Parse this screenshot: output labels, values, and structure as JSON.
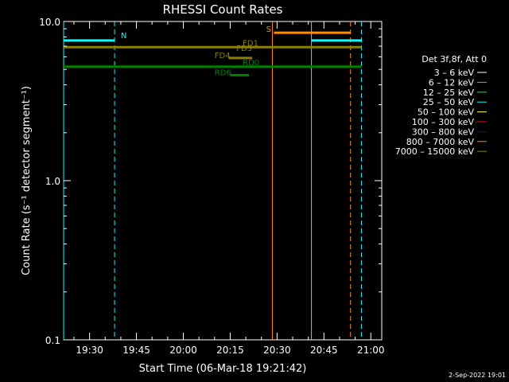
{
  "chart_data": {
    "type": "line",
    "title": "RHESSI Count Rates",
    "xlabel": "Start Time (06-Mar-18 19:21:42)",
    "ylabel": "Count Rate (s⁻¹ detector segment⁻¹)",
    "xaxis": {
      "unit": "clock time",
      "range": [
        "19:21:42",
        "21:03:30"
      ],
      "ticks": [
        "19:30",
        "19:45",
        "20:00",
        "20:15",
        "20:30",
        "20:45",
        "21:00"
      ]
    },
    "yaxis": {
      "scale": "log",
      "range": [
        0.1,
        10.0
      ],
      "ticks": [
        "0.1",
        "1.0",
        "10.0"
      ]
    },
    "grid": false,
    "legend": {
      "placement": "right",
      "title": "Det 3f,8f, Att 0",
      "entries": [
        {
          "label": "3 – 6 keV",
          "color": "#ffffff"
        },
        {
          "label": "6 – 12 keV",
          "color": "#ff55ff"
        },
        {
          "label": "12 – 25 keV",
          "color": "#00ff00"
        },
        {
          "label": "25 – 50 keV",
          "color": "#00ffff"
        },
        {
          "label": "50 – 100 keV",
          "color": "#ffff00"
        },
        {
          "label": "100 – 300 keV",
          "color": "#ff0000"
        },
        {
          "label": "300 – 800 keV",
          "color": "#0000ff"
        },
        {
          "label": "800 – 7000 keV",
          "color": "#ff8c00"
        },
        {
          "label": "7000 – 15000 keV",
          "color": "#8b8000"
        }
      ]
    },
    "lines": [
      {
        "name": "",
        "color": "#00ffff",
        "width": 3,
        "x": [
          "19:21:42",
          "19:38:00"
        ],
        "y": 7.6
      },
      {
        "name": "",
        "color": "#00ffff",
        "width": 3,
        "x": [
          "20:41:00",
          "20:57:00"
        ],
        "y": 7.6
      },
      {
        "name": "",
        "color": "#8b8000",
        "width": 3,
        "x": [
          "19:21:42",
          "20:57:00"
        ],
        "y": 6.9
      },
      {
        "name": "",
        "color": "#008000",
        "width": 3,
        "x": [
          "19:21:42",
          "20:57:00"
        ],
        "y": 5.2
      },
      {
        "name": "",
        "color": "#ff8c00",
        "width": 3,
        "x": [
          "20:29:00",
          "20:53:30"
        ],
        "y": 8.5
      },
      {
        "name": "",
        "color": "#8b8000",
        "width": 3,
        "x": [
          "20:14:30",
          "20:22:00"
        ],
        "y": 5.9
      },
      {
        "name": "",
        "color": "#008000",
        "width": 3,
        "x": [
          "20:15:00",
          "20:21:00"
        ],
        "y": 4.6
      }
    ],
    "vlines": [
      {
        "x": "19:21:42",
        "color": "#00ffff",
        "style": "solid"
      },
      {
        "x": "19:38:00",
        "color": "#00ffff",
        "style": "dashed"
      },
      {
        "x": "20:28:30",
        "color": "#ff8c00",
        "style": "solid"
      },
      {
        "x": "20:41:00",
        "color": "#00ffff",
        "style": "solid"
      },
      {
        "x": "20:53:30",
        "color": "#ff8c00",
        "style": "dashed"
      },
      {
        "x": "20:57:00",
        "color": "#00ffff",
        "style": "dashed"
      }
    ],
    "annotations": [
      {
        "text": "N",
        "color": "#00ffff",
        "x": "19:40:00",
        "y": 7.85
      },
      {
        "text": "S",
        "color": "#ff8c00",
        "x": "20:26:30",
        "y": 8.6
      },
      {
        "text": "FD1",
        "color": "#8b8000",
        "x": "20:19:00",
        "y": 7.05
      },
      {
        "text": "FD3",
        "color": "#8b8000",
        "x": "20:17:00",
        "y": 6.55
      },
      {
        "text": "FD4",
        "color": "#8b8000",
        "x": "20:10:00",
        "y": 5.9
      },
      {
        "text": "RD0",
        "color": "#008000",
        "x": "20:19:00",
        "y": 5.3
      },
      {
        "text": "RD6",
        "color": "#008000",
        "x": "20:10:00",
        "y": 4.6
      }
    ]
  },
  "footer": {
    "date": "2-Sep-2022 19:01"
  }
}
